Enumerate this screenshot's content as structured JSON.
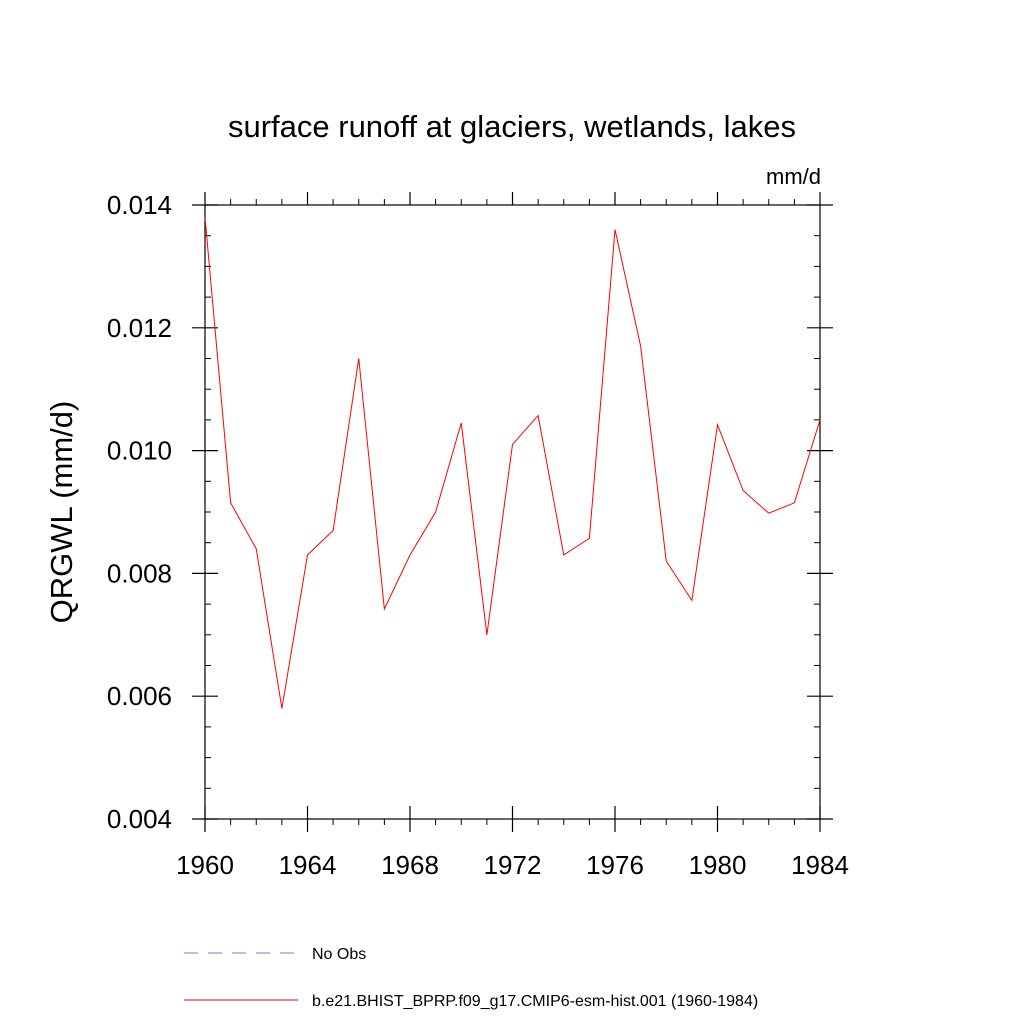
{
  "chart_data": {
    "type": "line",
    "title": "surface runoff at glaciers, wetlands, lakes",
    "units_label": "mm/d",
    "ylabel": "QRGWL  (mm/d)",
    "xlabel": "",
    "xlim": [
      1960,
      1984
    ],
    "ylim": [
      0.004,
      0.014
    ],
    "x_ticks": [
      "1960",
      "1964",
      "1968",
      "1972",
      "1976",
      "1980",
      "1984"
    ],
    "y_ticks": [
      "0.004",
      "0.006",
      "0.008",
      "0.010",
      "0.012",
      "0.014"
    ],
    "x": [
      1960,
      1961,
      1962,
      1963,
      1964,
      1965,
      1966,
      1967,
      1968,
      1969,
      1970,
      1971,
      1972,
      1973,
      1974,
      1975,
      1976,
      1977,
      1978,
      1979,
      1980,
      1981,
      1982,
      1983,
      1984
    ],
    "series": [
      {
        "name": "b.e21.BHIST_BPRP.f09_g17.CMIP6-esm-hist.001 (1960-1984)",
        "color": "#ff0000",
        "style": "solid",
        "values": [
          0.0138,
          0.00915,
          0.0084,
          0.0058,
          0.0083,
          0.0087,
          0.0115,
          0.00742,
          0.0083,
          0.009,
          0.01045,
          0.007,
          0.0101,
          0.01057,
          0.0083,
          0.00857,
          0.0136,
          0.0117,
          0.0082,
          0.00756,
          0.01042,
          0.00935,
          0.00898,
          0.00915,
          0.0105
        ]
      }
    ],
    "legend": [
      {
        "label": "No Obs",
        "color": "#7b7bc7",
        "style": "dashed"
      },
      {
        "label": "b.e21.BHIST_BPRP.f09_g17.CMIP6-esm-hist.001 (1960-1984)",
        "color": "#ff0000",
        "style": "solid"
      }
    ],
    "legend_position": "bottom-left",
    "grid": false
  }
}
